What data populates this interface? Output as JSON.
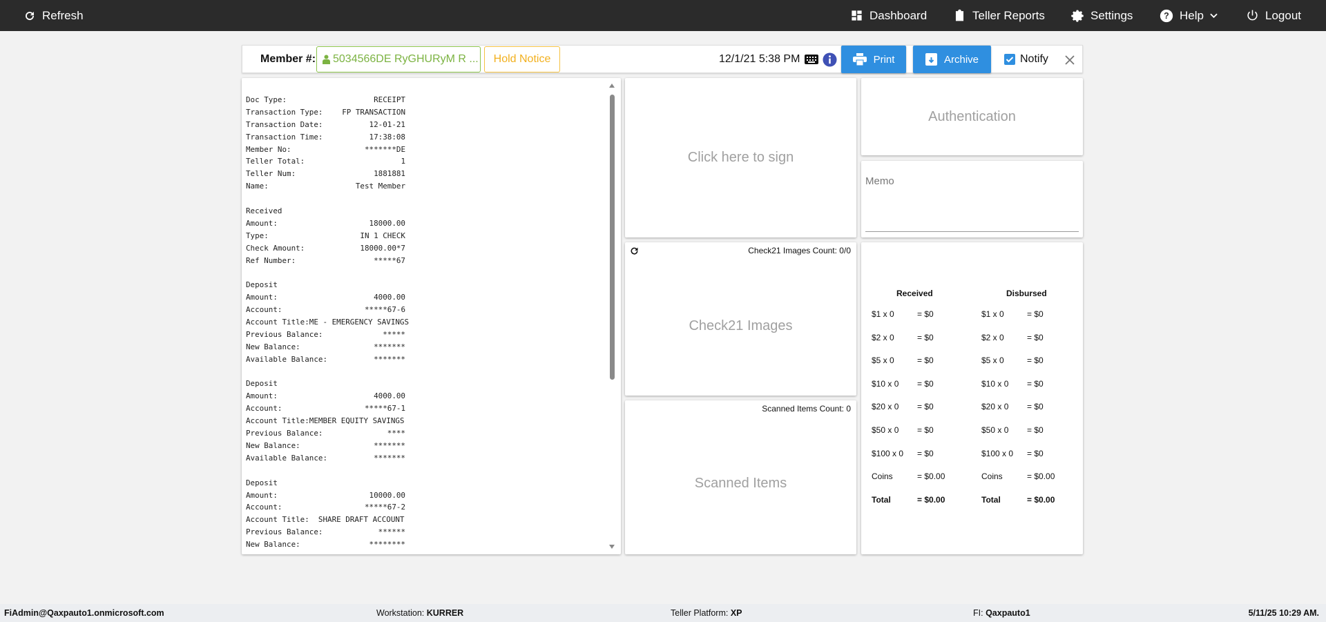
{
  "nav": {
    "refresh": "Refresh",
    "dashboard": "Dashboard",
    "teller_reports": "Teller Reports",
    "settings": "Settings",
    "help": "Help",
    "logout": "Logout"
  },
  "toolbar": {
    "member_label": "Member #:",
    "member_value": "5034566DE RyGHURyM R ...",
    "hold_notice": "Hold Notice",
    "datetime": "12/1/21 5:38 PM",
    "print": "Print",
    "archive": "Archive",
    "notify": "Notify",
    "notify_checked": true
  },
  "receipt": {
    "lines": [
      {
        "l": "Doc Type:",
        "v": "RECEIPT"
      },
      {
        "l": "Transaction Type:",
        "v": "FP TRANSACTION"
      },
      {
        "l": "Transaction Date:",
        "v": "12-01-21"
      },
      {
        "l": "Transaction Time:",
        "v": "17:38:08"
      },
      {
        "l": "Member No:",
        "v": "*******DE"
      },
      {
        "l": "Teller Total:",
        "v": "1"
      },
      {
        "l": "Teller Num:",
        "v": "1881881"
      },
      {
        "l": "Name:",
        "v": "Test Member"
      },
      {
        "l": "",
        "v": ""
      },
      {
        "l": "Received",
        "v": ""
      },
      {
        "l": "Amount:",
        "v": "18000.00"
      },
      {
        "l": "Type:",
        "v": "IN 1 CHECK"
      },
      {
        "l": "Check Amount:",
        "v": "18000.00*7"
      },
      {
        "l": "Ref Number:",
        "v": "*****67"
      },
      {
        "l": "",
        "v": ""
      },
      {
        "l": "Deposit",
        "v": ""
      },
      {
        "l": "Amount:",
        "v": "4000.00"
      },
      {
        "l": "Account:",
        "v": "*****67-6"
      },
      {
        "l": "Account Title:ME - EMERGENCY SAVINGS",
        "v": ""
      },
      {
        "l": "Previous Balance:",
        "v": "*****"
      },
      {
        "l": "New Balance:",
        "v": "*******"
      },
      {
        "l": "Available Balance:",
        "v": "*******"
      },
      {
        "l": "",
        "v": ""
      },
      {
        "l": "Deposit",
        "v": ""
      },
      {
        "l": "Amount:",
        "v": "4000.00"
      },
      {
        "l": "Account:",
        "v": "*****67-1"
      },
      {
        "l": "Account Title:MEMBER EQUITY SAVINGS",
        "v": ""
      },
      {
        "l": "Previous Balance:",
        "v": "****"
      },
      {
        "l": "New Balance:",
        "v": "*******"
      },
      {
        "l": "Available Balance:",
        "v": "*******"
      },
      {
        "l": "",
        "v": ""
      },
      {
        "l": "Deposit",
        "v": ""
      },
      {
        "l": "Amount:",
        "v": "10000.00"
      },
      {
        "l": "Account:",
        "v": "*****67-2"
      },
      {
        "l": "Account Title:  SHARE DRAFT ACCOUNT",
        "v": ""
      },
      {
        "l": "Previous Balance:",
        "v": "******"
      },
      {
        "l": "New Balance:",
        "v": "********"
      }
    ]
  },
  "signature": {
    "label": "Click here to sign"
  },
  "check21": {
    "count_label": "Check21 Images Count: 0/0",
    "label": "Check21 Images"
  },
  "scanned": {
    "count_label": "Scanned Items Count: 0",
    "label": "Scanned Items"
  },
  "authentication": {
    "label": "Authentication"
  },
  "memo": {
    "placeholder": "Memo"
  },
  "cash": {
    "received_header": "Received",
    "disbursed_header": "Disbursed",
    "received": [
      [
        "$1 x 0",
        "= $0"
      ],
      [
        "$2 x 0",
        "= $0"
      ],
      [
        "$5 x 0",
        "= $0"
      ],
      [
        "$10 x 0",
        "= $0"
      ],
      [
        "$20 x 0",
        "= $0"
      ],
      [
        "$50 x 0",
        "= $0"
      ],
      [
        "$100 x 0",
        "= $0"
      ],
      [
        "Coins",
        "= $0.00"
      ],
      [
        "Total",
        "= $0.00"
      ]
    ],
    "disbursed": [
      [
        "$1 x 0",
        "= $0"
      ],
      [
        "$2 x 0",
        "= $0"
      ],
      [
        "$5 x 0",
        "= $0"
      ],
      [
        "$10 x 0",
        "= $0"
      ],
      [
        "$20 x 0",
        "= $0"
      ],
      [
        "$50 x 0",
        "= $0"
      ],
      [
        "$100 x 0",
        "= $0"
      ],
      [
        "Coins",
        "= $0.00"
      ],
      [
        "Total",
        "= $0.00"
      ]
    ]
  },
  "footer": {
    "user": "FiAdmin@Qaxpauto1.onmicrosoft.com",
    "workstation_label": "Workstation:",
    "workstation": "KURRER",
    "platform_label": "Teller Platform:",
    "platform": "XP",
    "fi_label": "FI:",
    "fi": "Qaxpauto1",
    "datetime": "5/11/25 10:29 AM."
  }
}
